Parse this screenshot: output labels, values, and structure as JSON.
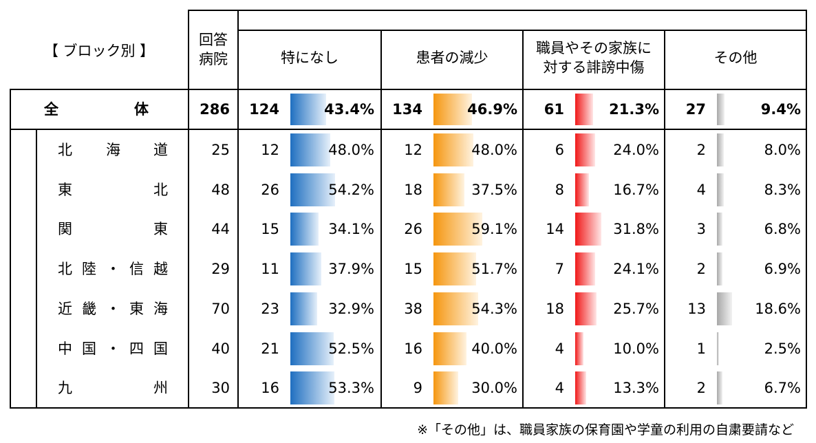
{
  "header": {
    "block_label": "【 ブロック別 】",
    "respondents_label": [
      "回答",
      "病院"
    ],
    "categories": [
      {
        "lines": [
          "特になし"
        ]
      },
      {
        "lines": [
          "患者の減少"
        ]
      },
      {
        "lines": [
          "職員やその家族に",
          "対する誹謗中傷"
        ]
      },
      {
        "lines": [
          "その他"
        ]
      }
    ]
  },
  "chart_data": {
    "type": "table",
    "title": "",
    "columns": [
      "回答病院",
      "特になし",
      "患者の減少",
      "職員やその家族に対する誹謗中傷",
      "その他"
    ],
    "colors": {
      "特になし": "#1f6fc0",
      "患者の減少": "#f5960f",
      "職員やその家族に対する誹謗中傷": "#f01818",
      "その他": "#a8a8a8"
    },
    "total": {
      "label_chars": [
        "全",
        "体"
      ],
      "hospitals": 286,
      "counts": [
        124,
        134,
        61,
        27
      ],
      "percents": [
        43.4,
        46.9,
        21.3,
        9.4
      ]
    },
    "rows": [
      {
        "label_chars": [
          "北",
          "海",
          "道"
        ],
        "hospitals": 25,
        "counts": [
          12,
          12,
          6,
          2
        ],
        "percents": [
          48.0,
          48.0,
          24.0,
          8.0
        ]
      },
      {
        "label_chars": [
          "東",
          "北"
        ],
        "hospitals": 48,
        "counts": [
          26,
          18,
          8,
          4
        ],
        "percents": [
          54.2,
          37.5,
          16.7,
          8.3
        ]
      },
      {
        "label_chars": [
          "関",
          "東"
        ],
        "hospitals": 44,
        "counts": [
          15,
          26,
          14,
          3
        ],
        "percents": [
          34.1,
          59.1,
          31.8,
          6.8
        ]
      },
      {
        "label_chars": [
          "北",
          "陸",
          "・",
          "信",
          "越"
        ],
        "hospitals": 29,
        "counts": [
          11,
          15,
          7,
          2
        ],
        "percents": [
          37.9,
          51.7,
          24.1,
          6.9
        ]
      },
      {
        "label_chars": [
          "近",
          "畿",
          "・",
          "東",
          "海"
        ],
        "hospitals": 70,
        "counts": [
          23,
          38,
          18,
          13
        ],
        "percents": [
          32.9,
          54.3,
          25.7,
          18.6
        ]
      },
      {
        "label_chars": [
          "中",
          "国",
          "・",
          "四",
          "国"
        ],
        "hospitals": 40,
        "counts": [
          21,
          16,
          4,
          1
        ],
        "percents": [
          52.5,
          40.0,
          10.0,
          2.5
        ]
      },
      {
        "label_chars": [
          "九",
          "州"
        ],
        "hospitals": 30,
        "counts": [
          16,
          9,
          4,
          2
        ],
        "percents": [
          53.3,
          30.0,
          13.3,
          6.7
        ]
      }
    ]
  },
  "footnote": "※「その他」は、職員家族の保育園や学童の利用の自粛要請など"
}
